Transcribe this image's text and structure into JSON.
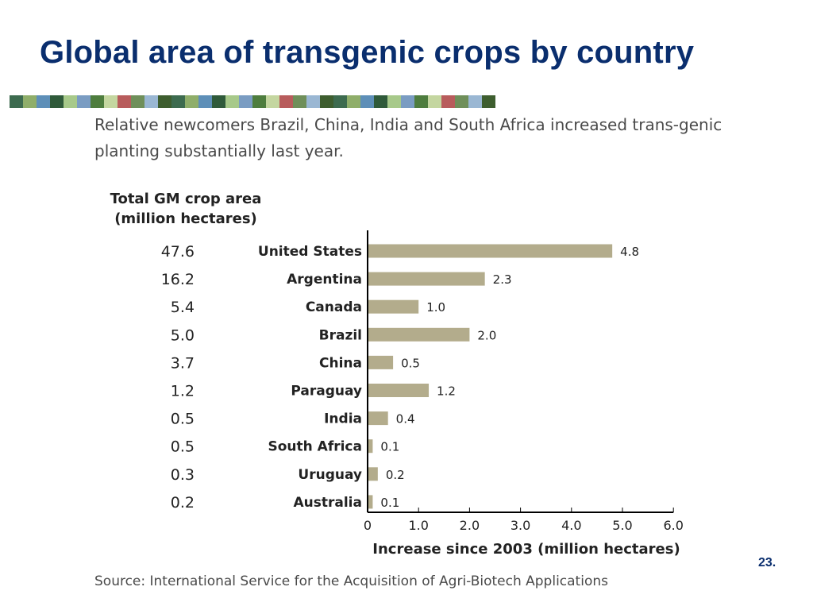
{
  "slide": {
    "title": "Global area of transgenic crops by country",
    "subtitle": "Relative newcomers Brazil, China, India and South Africa increased trans-genic planting substantially last year.",
    "left_header": "Total GM crop area (million hectares)",
    "source": "Source: International Service for the Acquisition of Agri-Biotech Applications",
    "page_number": "23."
  },
  "strip_colors": [
    "#3d6b4f",
    "#8fae6a",
    "#5e8fb8",
    "#2f5a3a",
    "#a7c98a",
    "#7a9cc2",
    "#4e7d3e",
    "#c4d6a0",
    "#b85c5c",
    "#6f8f5a",
    "#9ab7d3",
    "#3e5e2f"
  ],
  "chart_data": {
    "type": "bar",
    "orientation": "horizontal",
    "categories": [
      "United States",
      "Argentina",
      "Canada",
      "Brazil",
      "China",
      "Paraguay",
      "India",
      "South Africa",
      "Uruguay",
      "Australia"
    ],
    "values": [
      4.8,
      2.3,
      1.0,
      2.0,
      0.5,
      1.2,
      0.4,
      0.1,
      0.2,
      0.1
    ],
    "value_labels": [
      "4.8",
      "2.3",
      "1.0",
      "2.0",
      "0.5",
      "1.2",
      "0.4",
      "0.1",
      "0.2",
      "0.1"
    ],
    "totals": [
      "47.6",
      "16.2",
      "5.4",
      "5.0",
      "3.7",
      "1.2",
      "0.5",
      "0.5",
      "0.3",
      "0.2"
    ],
    "xlabel": "Increase since 2003 (million hectares)",
    "ticks": [
      "0",
      "1.0",
      "2.0",
      "3.0",
      "4.0",
      "5.0",
      "6.0"
    ],
    "xlim": [
      0,
      6
    ],
    "bar_color": "#b3ac8c",
    "grid": false
  }
}
